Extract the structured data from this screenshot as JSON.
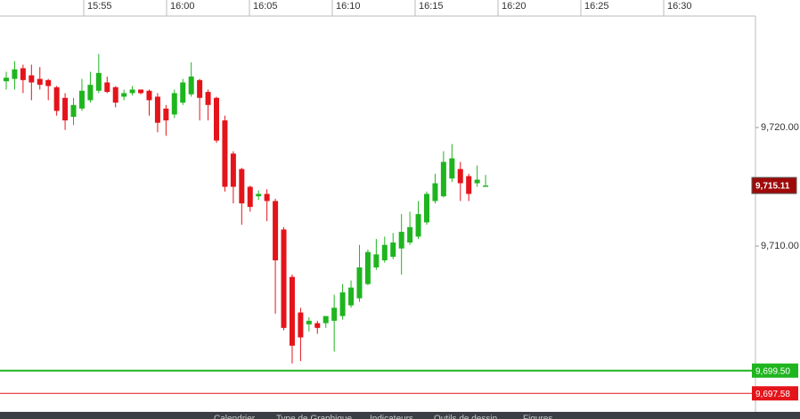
{
  "chart_data": {
    "type": "candlestick",
    "up_color": "#1fb51f",
    "down_color": "#e4141b",
    "xticks": [
      "15:55",
      "16:00",
      "16:05",
      "16:10",
      "16:15",
      "16:20",
      "16:25",
      "16:30"
    ],
    "ylim": [
      9696.17,
      9729.4
    ],
    "yticks": [
      {
        "value": 9710,
        "label": "9,710.00"
      },
      {
        "value": 9720,
        "label": "9,720.00"
      }
    ],
    "open": [
      9723.9,
      9724.1,
      9725.0,
      9724.4,
      9724.1,
      9724.0,
      9723.4,
      9722.5,
      9720.9,
      9721.6,
      9722.3,
      9723.1,
      9723.8,
      9723.4,
      9722.6,
      9722.9,
      9723.2,
      9723.1,
      9722.6,
      9721.6,
      9721.1,
      9722.1,
      9722.8,
      9724.0,
      9723.0,
      9722.5,
      9720.6,
      9717.8,
      9716.5,
      9715.0,
      9714.2,
      9714.4,
      9713.8,
      9711.4,
      9707.4,
      9704.4,
      9703.4,
      9703.5,
      9703.5,
      9703.7,
      9704.1,
      9705.0,
      9705.6,
      9706.8,
      9708.2,
      9708.8,
      9709.1,
      9709.8,
      9710.3,
      9710.8,
      9712.0,
      9713.8,
      9714.2,
      9715.7,
      9716.5,
      9715.9,
      9715.3,
      9715.0
    ],
    "high": [
      9724.7,
      9725.6,
      9725.3,
      9725.3,
      9725.1,
      9724.1,
      9723.5,
      9722.9,
      9722.5,
      9724.1,
      9724.7,
      9726.2,
      9724.3,
      9723.5,
      9723.2,
      9723.5,
      9723.2,
      9723.2,
      9722.9,
      9721.9,
      9723.2,
      9724.1,
      9725.5,
      9724.1,
      9723.2,
      9722.6,
      9721.0,
      9718.0,
      9716.6,
      9715.1,
      9714.7,
      9714.8,
      9714.0,
      9711.6,
      9707.6,
      9704.8,
      9704.0,
      9703.7,
      9704.1,
      9705.9,
      9706.8,
      9707.1,
      9710.1,
      9709.7,
      9710.6,
      9710.8,
      9711.1,
      9712.7,
      9712.9,
      9713.8,
      9714.6,
      9716.1,
      9718.0,
      9718.6,
      9717.1,
      9716.1,
      9716.8,
      9716.0
    ],
    "low": [
      9723.2,
      9723.2,
      9722.9,
      9722.3,
      9723.2,
      9722.3,
      9721.0,
      9719.8,
      9720.2,
      9721.4,
      9722.1,
      9722.9,
      9722.9,
      9721.7,
      9722.3,
      9722.7,
      9722.8,
      9721.0,
      9719.6,
      9719.3,
      9720.8,
      9721.9,
      9722.6,
      9720.6,
      9720.6,
      9718.7,
      9714.6,
      9713.6,
      9711.8,
      9712.9,
      9713.9,
      9712.1,
      9704.3,
      9702.9,
      9700.1,
      9700.3,
      9702.8,
      9702.6,
      9703.1,
      9701.1,
      9703.8,
      9704.8,
      9705.3,
      9706.7,
      9708.0,
      9708.6,
      9708.9,
      9707.6,
      9710.1,
      9710.6,
      9711.8,
      9713.6,
      9714.1,
      9715.4,
      9713.8,
      9713.8,
      9715.0,
      9715.1
    ],
    "close": [
      9724.2,
      9724.9,
      9724.0,
      9723.8,
      9723.6,
      9723.5,
      9721.4,
      9720.6,
      9721.9,
      9723.1,
      9723.6,
      9724.6,
      9723.0,
      9722.1,
      9722.9,
      9723.2,
      9722.9,
      9722.3,
      9720.4,
      9720.6,
      9722.9,
      9723.8,
      9724.3,
      9722.5,
      9721.9,
      9718.9,
      9715.0,
      9715.0,
      9713.6,
      9713.3,
      9714.4,
      9713.8,
      9708.8,
      9703.1,
      9701.6,
      9702.3,
      9703.7,
      9703.1,
      9704.1,
      9704.8,
      9706.1,
      9706.5,
      9708.2,
      9709.5,
      9709.3,
      9710.1,
      9710.3,
      9711.2,
      9711.6,
      9712.7,
      9714.4,
      9715.3,
      9717.1,
      9717.4,
      9715.3,
      9714.4,
      9715.6,
      9715.11
    ],
    "last_price": {
      "value": 9715.11,
      "label": "9,715.11",
      "color": "#9e0a0a"
    },
    "price_lines": [
      {
        "value": 9699.5,
        "label": "9,699.50",
        "color": "#1fb51f"
      },
      {
        "value": 9697.58,
        "label": "9,697.58",
        "color": "#e4141b"
      }
    ]
  },
  "toolbar": [
    "Calendrier",
    "Type de Graphique",
    "Indicateurs",
    "Outils de dessin",
    "Figures"
  ]
}
